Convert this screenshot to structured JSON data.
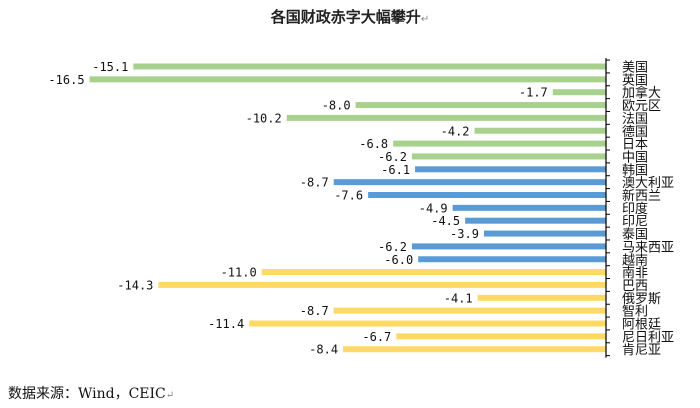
{
  "title": "各国财政赤字大幅攀升",
  "source": "数据来源：Wind，CEIC",
  "colors": {
    "developed": "#a9d18e",
    "asia": "#5b9bd5",
    "emerging": "#ffd966",
    "axis": "#000000",
    "label_text": "#111111"
  },
  "chart_data": {
    "type": "bar",
    "orientation": "horizontal",
    "title": "各国财政赤字大幅攀升",
    "categories": [
      "美国",
      "英国",
      "加拿大",
      "欧元区",
      "法国",
      "德国",
      "日本",
      "中国",
      "韩国",
      "澳大利亚",
      "新西兰",
      "印度",
      "印尼",
      "泰国",
      "马来西亚",
      "越南",
      "南非",
      "巴西",
      "俄罗斯",
      "智利",
      "阿根廷",
      "尼日利亚",
      "肯尼亚"
    ],
    "values": [
      -15.1,
      -16.5,
      -1.7,
      -8.0,
      -10.2,
      -4.2,
      -6.8,
      -6.2,
      -6.1,
      -8.7,
      -7.6,
      -4.9,
      -4.5,
      -3.9,
      -6.2,
      -6.0,
      -11.0,
      -14.3,
      -4.1,
      -8.7,
      -11.4,
      -6.7,
      -8.4
    ],
    "value_labels": [
      "-15.1",
      "-16.5",
      "-1.7",
      "-8.0",
      "-10.2",
      "-4.2",
      "-6.8",
      "-6.2",
      "-6.1",
      "-8.7",
      "-7.6",
      "-4.9",
      "-4.5",
      "-3.9",
      "-6.2",
      "-6.0",
      "-11.0",
      "-14.3",
      "-4.1",
      "-8.7",
      "-11.4",
      "-6.7",
      "-8.4"
    ],
    "groups": [
      "developed",
      "developed",
      "developed",
      "developed",
      "developed",
      "developed",
      "developed",
      "developed",
      "asia",
      "asia",
      "asia",
      "asia",
      "asia",
      "asia",
      "asia",
      "asia",
      "emerging",
      "emerging",
      "emerging",
      "emerging",
      "emerging",
      "emerging",
      "emerging"
    ],
    "xlim": [
      -16.5,
      0
    ],
    "grid": false,
    "legend": "none"
  }
}
